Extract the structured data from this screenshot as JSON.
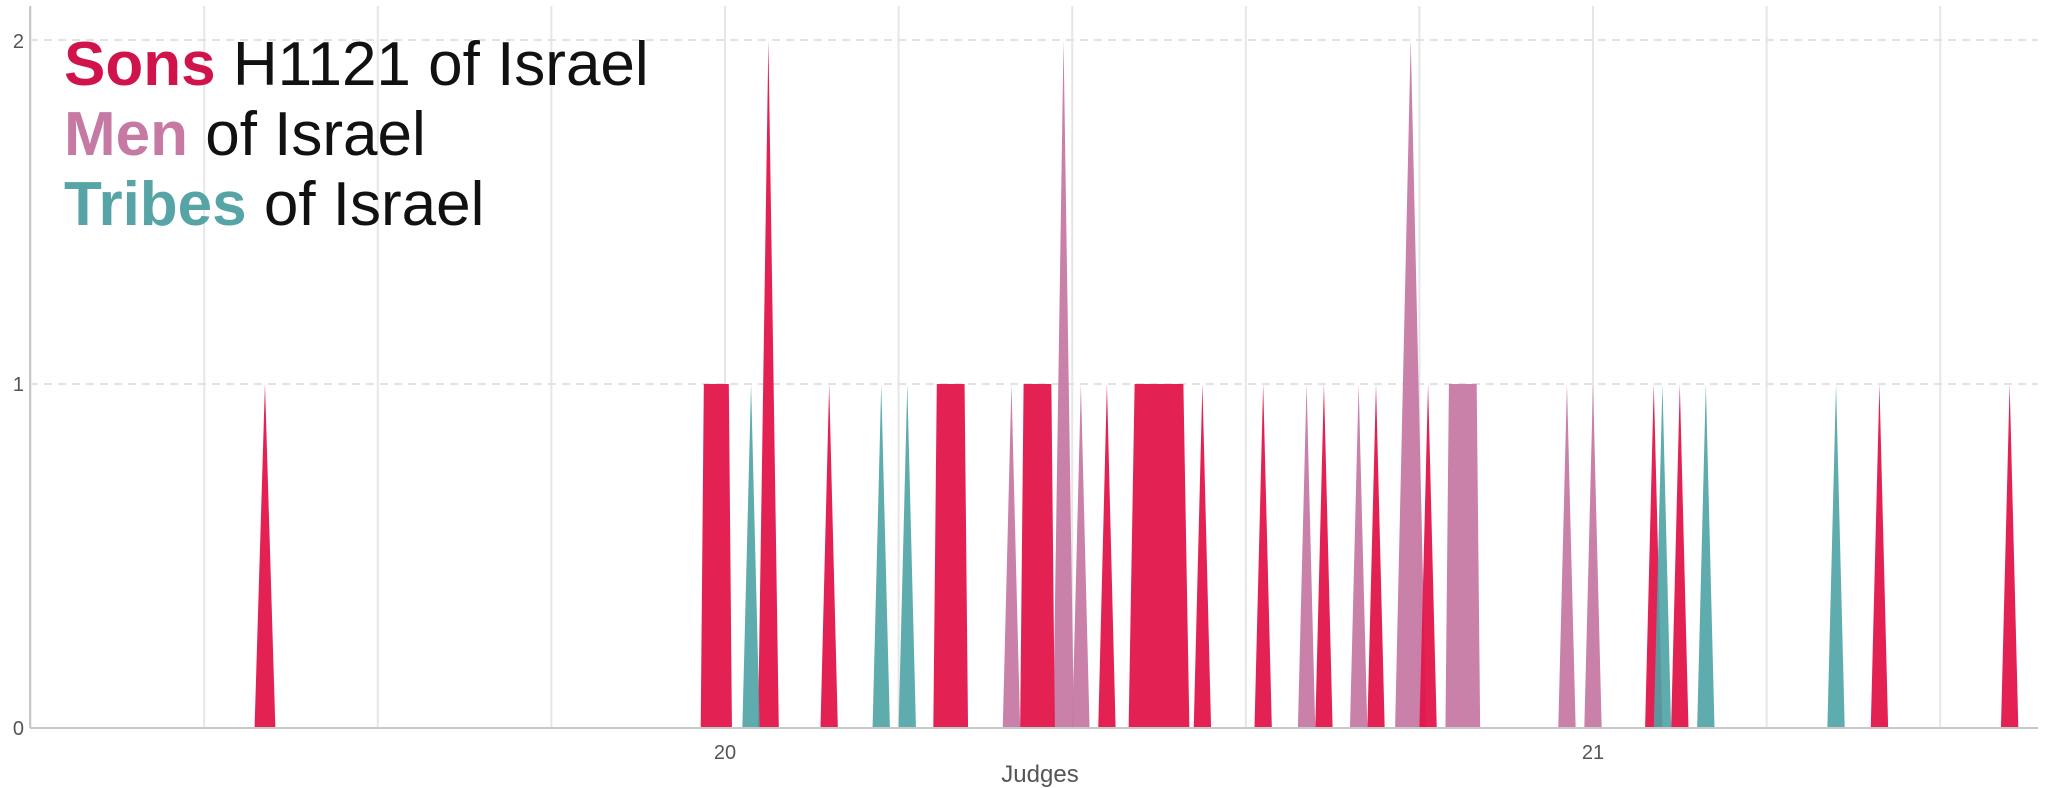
{
  "chart_data": {
    "type": "area",
    "xlabel": "Judges",
    "x_ticks": [
      {
        "label": "20",
        "value": 20
      },
      {
        "label": "21",
        "value": 21
      }
    ],
    "xlim": [
      19.2,
      21.52
    ],
    "ylim": [
      0,
      2
    ],
    "y_ticks": [
      "0",
      "1",
      "2"
    ],
    "grid": true,
    "legend_placement": "top-left",
    "series": [
      {
        "key": "sons",
        "color": "#e3154a",
        "label_key": "Sons",
        "label_rest": " H1121 of Israel",
        "spikes": [
          [
            19.47,
            1,
            0.012
          ],
          [
            19.99,
            1,
            0.018
          ],
          [
            20.05,
            2,
            0.012
          ],
          [
            20.12,
            1,
            0.01
          ],
          [
            20.26,
            1,
            0.02
          ],
          [
            20.36,
            1,
            0.02
          ],
          [
            20.44,
            1,
            0.01
          ],
          [
            20.5,
            1,
            0.035
          ],
          [
            20.55,
            1,
            0.01
          ],
          [
            20.62,
            1,
            0.01
          ],
          [
            20.69,
            1,
            0.01
          ],
          [
            20.75,
            1,
            0.01
          ],
          [
            20.81,
            1,
            0.01
          ],
          [
            21.07,
            1,
            0.01
          ],
          [
            21.1,
            1,
            0.01
          ],
          [
            21.33,
            1,
            0.01
          ],
          [
            21.48,
            1,
            0.01
          ]
        ]
      },
      {
        "key": "men",
        "color": "#c679a4",
        "label_key": "Men",
        "label_rest": " of Israel",
        "spikes": [
          [
            20.33,
            1,
            0.01
          ],
          [
            20.39,
            2,
            0.012
          ],
          [
            20.41,
            1,
            0.01
          ],
          [
            20.67,
            1,
            0.01
          ],
          [
            20.73,
            1,
            0.01
          ],
          [
            20.79,
            2,
            0.018
          ],
          [
            20.85,
            1,
            0.02
          ],
          [
            20.97,
            1,
            0.01
          ],
          [
            21.0,
            1,
            0.01
          ]
        ]
      },
      {
        "key": "tribes",
        "color": "#4da3a5",
        "label_key": "Tribes",
        "label_rest": " of Israel",
        "spikes": [
          [
            20.03,
            1,
            0.01
          ],
          [
            20.18,
            1,
            0.01
          ],
          [
            20.21,
            1,
            0.01
          ],
          [
            21.08,
            1,
            0.01
          ],
          [
            21.13,
            1,
            0.01
          ],
          [
            21.28,
            1,
            0.01
          ]
        ]
      }
    ]
  }
}
